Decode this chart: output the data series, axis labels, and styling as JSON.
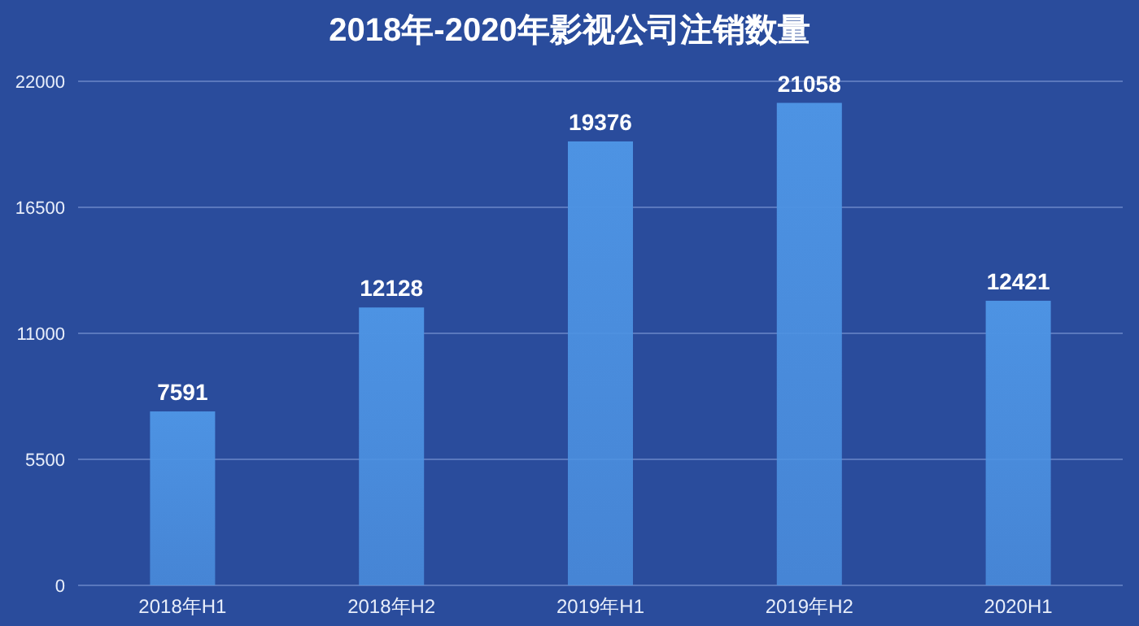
{
  "chart_data": {
    "type": "bar",
    "title": "2018年-2020年影视公司注销数量",
    "categories": [
      "2018年H1",
      "2018年H2",
      "2019年H1",
      "2019年H2",
      "2020H1"
    ],
    "values": [
      7591,
      12128,
      19376,
      21058,
      12421
    ],
    "color": "#4d93e3",
    "ylim": [
      0,
      22000
    ],
    "yticks": [
      0,
      5500,
      11000,
      16500,
      22000
    ],
    "grid": "y",
    "data_labels": true
  }
}
